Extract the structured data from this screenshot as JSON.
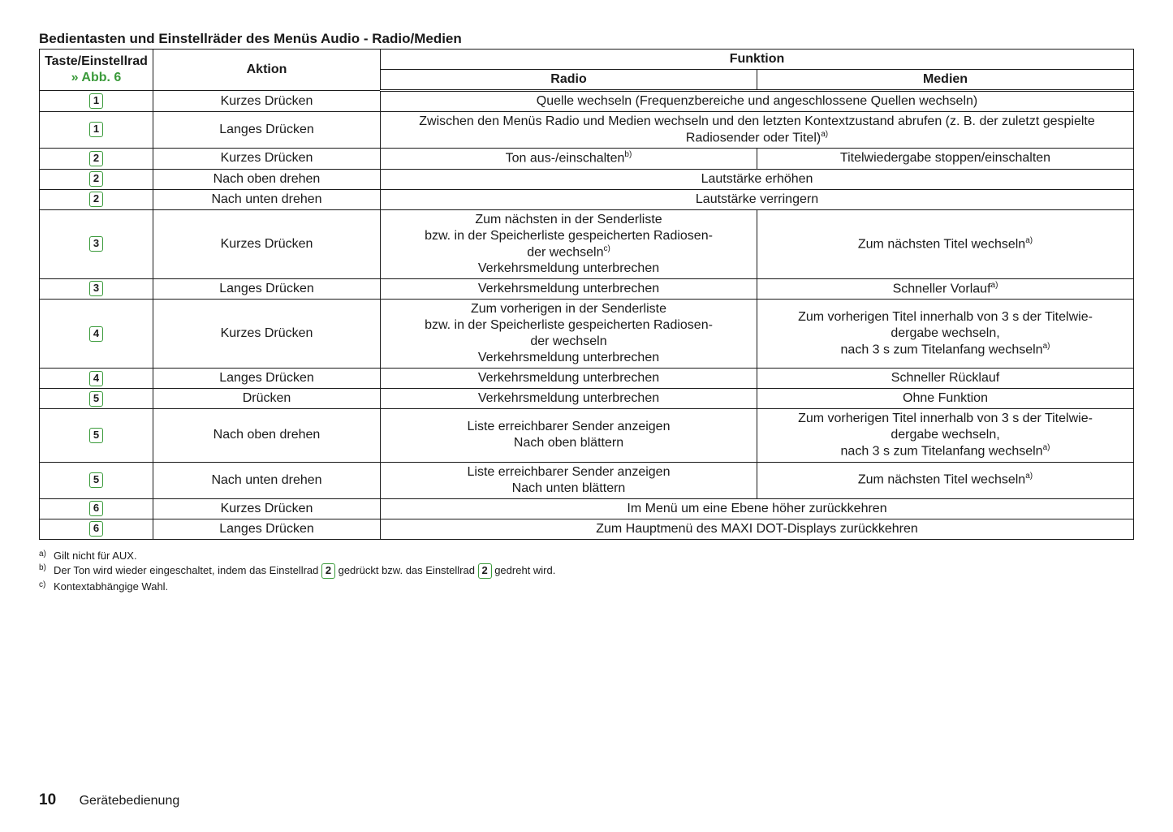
{
  "title": "Bedientasten und Einstellräder des Menüs Audio - Radio/Medien",
  "ref_text": "» Abb. 6",
  "headers": {
    "taste": "Taste/Einstellrad",
    "aktion": "Aktion",
    "funktion": "Funktion",
    "radio": "Radio",
    "medien": "Medien"
  },
  "rows": [
    {
      "key": "1",
      "aktion": "Kurzes Drücken",
      "span": true,
      "full": "Quelle wechseln (Frequenzbereiche und angeschlossene Quellen wechseln)"
    },
    {
      "key": "1",
      "aktion": "Langes Drücken",
      "span": true,
      "full": "Zwischen den Menüs Radio und Medien wechseln und den letzten Kontextzustand abrufen (z. B. der zuletzt gespielte Radiosender oder Titel)",
      "full_fn": "a)"
    },
    {
      "key": "2",
      "aktion": "Kurzes Drücken",
      "radio": "Ton aus-/einschalten",
      "radio_fn": "b)",
      "medien": "Titelwiedergabe stoppen/einschalten"
    },
    {
      "key": "2",
      "aktion": "Nach oben drehen",
      "span": true,
      "full": "Lautstärke erhöhen"
    },
    {
      "key": "2",
      "aktion": "Nach unten drehen",
      "span": true,
      "full": "Lautstärke verringern"
    },
    {
      "key": "3",
      "aktion": "Kurzes Drücken",
      "radio_lines": [
        "Zum nächsten in der Senderliste",
        "bzw. in der Speicherliste gespeicherten Radiosen-",
        "der wechseln",
        "Verkehrsmeldung unterbrechen"
      ],
      "radio_line_fn": {
        "2": "c)"
      },
      "medien": "Zum nächsten Titel wechseln",
      "medien_fn": "a)"
    },
    {
      "key": "3",
      "aktion": "Langes Drücken",
      "radio": "Verkehrsmeldung unterbrechen",
      "medien": "Schneller Vorlauf",
      "medien_fn": "a)"
    },
    {
      "key": "4",
      "aktion": "Kurzes Drücken",
      "radio_lines": [
        "Zum vorherigen in der Senderliste",
        "bzw. in der Speicherliste gespeicherten Radiosen-",
        "der wechseln",
        "Verkehrsmeldung unterbrechen"
      ],
      "medien_lines": [
        "Zum vorherigen Titel innerhalb von 3 s der Titelwie-",
        "dergabe wechseln,",
        "nach 3 s zum Titelanfang wechseln"
      ],
      "medien_line_fn": {
        "2": "a)"
      }
    },
    {
      "key": "4",
      "aktion": "Langes Drücken",
      "radio": "Verkehrsmeldung unterbrechen",
      "medien": "Schneller Rücklauf"
    },
    {
      "key": "5",
      "aktion": "Drücken",
      "radio": "Verkehrsmeldung unterbrechen",
      "medien": "Ohne Funktion"
    },
    {
      "key": "5",
      "aktion": "Nach oben drehen",
      "radio_lines": [
        "Liste erreichbarer Sender anzeigen",
        "Nach oben blättern"
      ],
      "medien_lines": [
        "Zum vorherigen Titel innerhalb von 3 s der Titelwie-",
        "dergabe wechseln,",
        "nach 3 s zum Titelanfang wechseln"
      ],
      "medien_line_fn": {
        "2": "a)"
      }
    },
    {
      "key": "5",
      "aktion": "Nach unten drehen",
      "radio_lines": [
        "Liste erreichbarer Sender anzeigen",
        "Nach unten blättern"
      ],
      "medien": "Zum nächsten Titel wechseln",
      "medien_fn": "a)"
    },
    {
      "key": "6",
      "aktion": "Kurzes Drücken",
      "span": true,
      "full": "Im Menü um eine Ebene höher zurückkehren"
    },
    {
      "key": "6",
      "aktion": "Langes Drücken",
      "span": true,
      "full": "Zum Hauptmenü des MAXI DOT-Displays zurückkehren"
    }
  ],
  "footnotes": {
    "a": {
      "marker": "a)",
      "text_pre": "Gilt nicht für AUX."
    },
    "b": {
      "marker": "b)",
      "text_pre": "Der Ton wird wieder eingeschaltet, indem das Einstellrad ",
      "badge1": "2",
      "text_mid": " gedrückt bzw. das Einstellrad ",
      "badge2": "2",
      "text_post": " gedreht wird."
    },
    "c": {
      "marker": "c)",
      "text_pre": "Kontextabhängige Wahl."
    }
  },
  "footer": {
    "page": "10",
    "section": "Gerätebedienung"
  },
  "colors": {
    "accent": "#3a9a3a",
    "text": "#1a1a1a",
    "bg": "#ffffff"
  }
}
